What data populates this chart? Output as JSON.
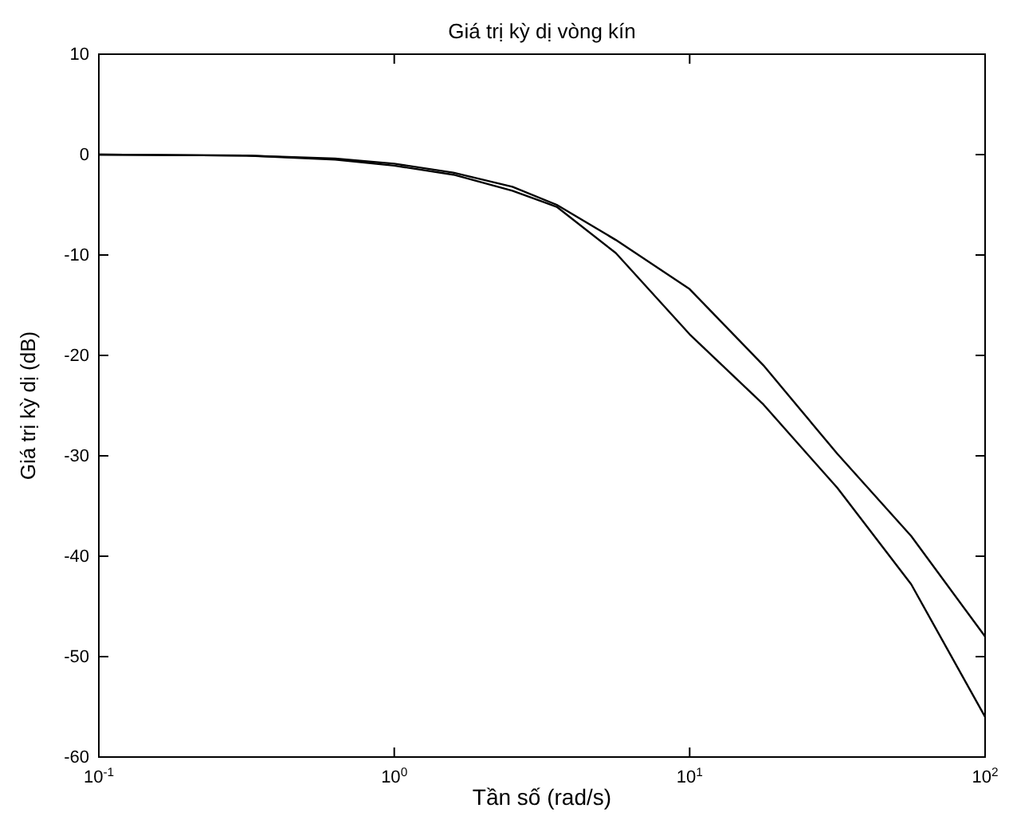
{
  "chart_data": {
    "type": "line",
    "title": "Giá trị kỳ dị vòng kín",
    "xlabel": "Tần số (rad/s)",
    "ylabel": "Giá trị kỳ dị (dB)",
    "log": "x",
    "x": [
      0.1,
      0.316,
      0.631,
      1,
      1.585,
      2.512,
      3.548,
      5.623,
      10,
      17.78,
      31.62,
      56.23,
      100
    ],
    "series": [
      {
        "color": "#000000",
        "values": [
          0,
          -0.1,
          -0.4,
          -0.9,
          -1.8,
          -3.2,
          -5.0,
          -8.5,
          -13.4,
          -21,
          -29.8,
          -38,
          -48
        ]
      },
      {
        "color": "#000000",
        "values": [
          0,
          -0.1,
          -0.5,
          -1.1,
          -2.0,
          -3.6,
          -5.2,
          -9.8,
          -17.9,
          -24.9,
          -33.2,
          -42.8,
          -56
        ]
      }
    ],
    "xlim": [
      0.1,
      100
    ],
    "xticks": [
      {
        "value": 0.1,
        "label": "10$^{-1}$"
      },
      {
        "value": 1,
        "label": "10$^{0}$"
      },
      {
        "value": 10,
        "label": "10$^{1}$"
      },
      {
        "value": 100,
        "label": "10$^{2}$"
      }
    ],
    "ylim": [
      -60,
      10
    ],
    "yticks": [
      10,
      0,
      -10,
      -20,
      -30,
      -40,
      -50,
      -60
    ],
    "grid": false,
    "line_style": "solid",
    "marker": "none"
  }
}
